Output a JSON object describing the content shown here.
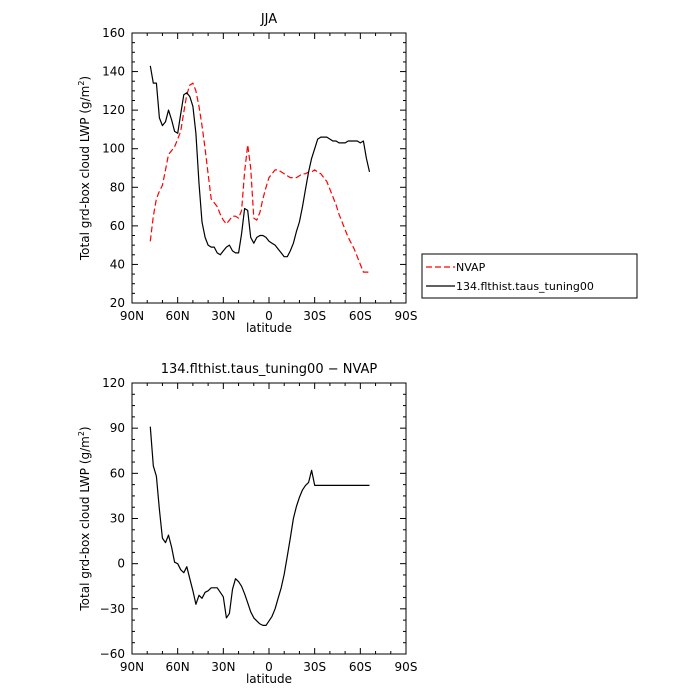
{
  "legend": {
    "entries": [
      {
        "name": "NVAP",
        "color": "#ff0000",
        "dash": "dashed"
      },
      {
        "name": "134.flthist.taus_tuning00",
        "color": "#000000",
        "dash": "solid"
      }
    ]
  },
  "chart_data": [
    {
      "type": "line",
      "title": "JJA",
      "xlabel": "latitude",
      "ylabel": "Total grd-box cloud LWP (g/m²)",
      "ylabel_main": "Total grd-box cloud LWP (g/m",
      "ylabel_sup": "2",
      "ylabel_end": ")",
      "xlim": [
        90,
        -90
      ],
      "ylim": [
        20,
        160
      ],
      "xticks": [
        90,
        60,
        30,
        0,
        -30,
        -60,
        -90
      ],
      "xtick_labels": [
        "90N",
        "60N",
        "30N",
        "0",
        "30S",
        "60S",
        "90S"
      ],
      "yticks": [
        20,
        40,
        60,
        80,
        100,
        120,
        140,
        160
      ],
      "ytick_labels": [
        "20",
        "40",
        "60",
        "80",
        "100",
        "120",
        "140",
        "160"
      ],
      "grid": false,
      "legend_position": "right",
      "series": [
        {
          "name": "NVAP",
          "color": "#ff0000",
          "dash": "dashed",
          "x": [
            78,
            76,
            74,
            72,
            70,
            68,
            66,
            64,
            62,
            60,
            58,
            56,
            54,
            52,
            50,
            48,
            46,
            44,
            42,
            40,
            38,
            36,
            34,
            32,
            30,
            28,
            26,
            24,
            22,
            20,
            18,
            16,
            14,
            12,
            10,
            8,
            6,
            4,
            2,
            0,
            -2,
            -4,
            -6,
            -8,
            -10,
            -12,
            -14,
            -16,
            -18,
            -20,
            -22,
            -24,
            -26,
            -28,
            -30,
            -32,
            -34,
            -36,
            -38,
            -40,
            -42,
            -44,
            -46,
            -48,
            -50,
            -52,
            -54,
            -56,
            -58,
            -60,
            -62,
            -64,
            -66
          ],
          "y": [
            52,
            65,
            74,
            78,
            81,
            89,
            97,
            99,
            101,
            105,
            109,
            119,
            128,
            133,
            134,
            130,
            122,
            112,
            100,
            87,
            74,
            72,
            70,
            66,
            63,
            61,
            63,
            65,
            65,
            64,
            68,
            88,
            102,
            90,
            64,
            63,
            67,
            74,
            80,
            85,
            87,
            89,
            89,
            88,
            87,
            86,
            85,
            85,
            85,
            86,
            87,
            87,
            88,
            88,
            89,
            88,
            87,
            85,
            83,
            79,
            75,
            71,
            66,
            62,
            58,
            54,
            51,
            48,
            44,
            40,
            36,
            36,
            36
          ]
        },
        {
          "name": "134.flthist.taus_tuning00",
          "color": "#000000",
          "dash": "solid",
          "x": [
            78,
            76,
            74,
            72,
            70,
            68,
            66,
            64,
            62,
            60,
            58,
            56,
            54,
            52,
            50,
            48,
            46,
            44,
            42,
            40,
            38,
            36,
            34,
            32,
            30,
            28,
            26,
            24,
            22,
            20,
            18,
            16,
            14,
            12,
            10,
            8,
            6,
            4,
            2,
            0,
            -2,
            -4,
            -6,
            -8,
            -10,
            -12,
            -14,
            -16,
            -18,
            -20,
            -22,
            -24,
            -26,
            -28,
            -30,
            -32,
            -34,
            -36,
            -38,
            -40,
            -42,
            -44,
            -46,
            -48,
            -50,
            -52,
            -54,
            -56,
            -58,
            -60,
            -62,
            -64,
            -66
          ],
          "y": [
            143,
            134,
            134,
            116,
            112,
            114,
            120,
            115,
            109,
            108,
            118,
            128,
            129,
            127,
            122,
            108,
            82,
            62,
            54,
            50,
            49,
            49,
            46,
            45,
            47,
            49,
            50,
            47,
            46,
            46,
            56,
            69,
            68,
            54,
            51,
            54,
            55,
            55,
            54,
            52,
            51,
            50,
            48,
            46,
            44,
            44,
            47,
            51,
            57,
            62,
            70,
            79,
            88,
            95,
            100,
            105,
            106,
            106,
            106,
            105,
            104,
            104,
            103,
            103,
            103,
            104,
            104,
            104,
            104,
            103,
            104,
            95,
            88
          ]
        }
      ]
    },
    {
      "type": "line",
      "title": "134.flthist.taus_tuning00 − NVAP",
      "xlabel": "latitude",
      "ylabel": "Total grd-box cloud LWP (g/m²)",
      "ylabel_main": "Total grd-box cloud LWP (g/m",
      "ylabel_sup": "2",
      "ylabel_end": ")",
      "xlim": [
        90,
        -90
      ],
      "ylim": [
        -60,
        120
      ],
      "xticks": [
        90,
        60,
        30,
        0,
        -30,
        -60,
        -90
      ],
      "xtick_labels": [
        "90N",
        "60N",
        "30N",
        "0",
        "30S",
        "60S",
        "90S"
      ],
      "yticks": [
        -60,
        -30,
        0,
        30,
        60,
        90,
        120
      ],
      "ytick_labels": [
        "−60",
        "−30",
        "0",
        "30",
        "60",
        "90",
        "120"
      ],
      "grid": false,
      "series": [
        {
          "name": "134.flthist.taus_tuning00 − NVAP",
          "color": "#000000",
          "dash": "solid",
          "x": [
            78,
            76,
            74,
            72,
            70,
            68,
            66,
            64,
            62,
            60,
            58,
            56,
            54,
            52,
            50,
            48,
            46,
            44,
            42,
            40,
            38,
            36,
            34,
            32,
            30,
            28,
            26,
            24,
            22,
            20,
            18,
            16,
            14,
            12,
            10,
            8,
            6,
            4,
            2,
            0,
            -2,
            -4,
            -6,
            -8,
            -10,
            -12,
            -14,
            -16,
            -18,
            -20,
            -22,
            -24,
            -26,
            -28,
            -30,
            -32,
            -34,
            -36,
            -38,
            -40,
            -42,
            -44,
            -46,
            -48,
            -50,
            -52,
            -54,
            -56,
            -58,
            -60,
            -62,
            -64,
            -66
          ],
          "y": [
            91,
            65,
            58,
            36,
            17,
            14,
            19,
            11,
            1,
            0,
            -4,
            -6,
            -2,
            -10,
            -18,
            -27,
            -21,
            -23,
            -19,
            -18,
            -16,
            -16,
            -16,
            -19,
            -22,
            -36,
            -33,
            -17,
            -10,
            -12,
            -15,
            -20,
            -26,
            -32,
            -36,
            -38,
            -40,
            -41,
            -41,
            -38,
            -35,
            -30,
            -23,
            -16,
            -7,
            5,
            17,
            30,
            38,
            44,
            49,
            52,
            54,
            62,
            52,
            52,
            52,
            52,
            52,
            52,
            52,
            52,
            52,
            52,
            52,
            52,
            52,
            52,
            52,
            52,
            52,
            52,
            52
          ]
        }
      ]
    }
  ]
}
